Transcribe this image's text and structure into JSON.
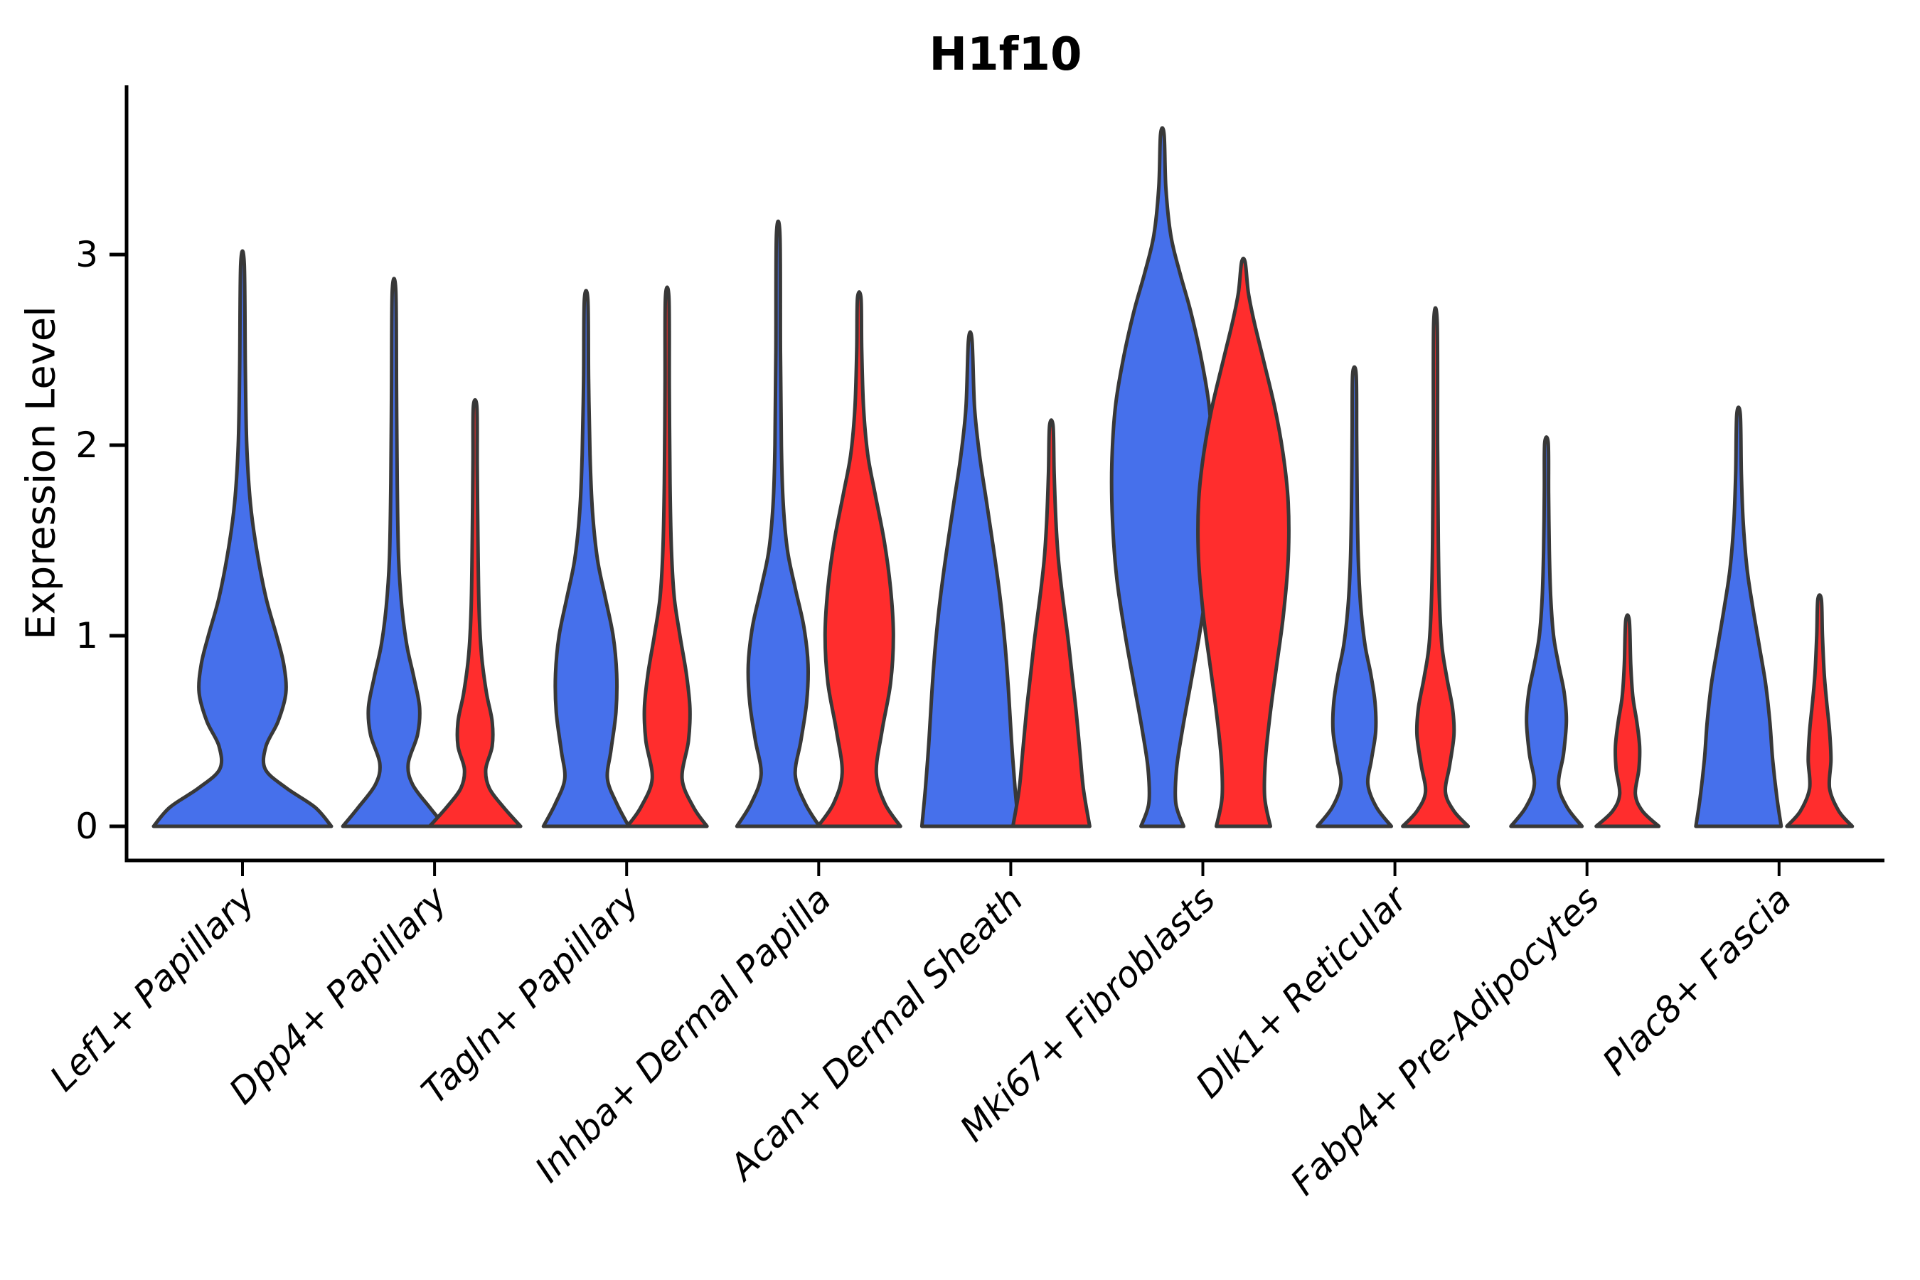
{
  "figure": {
    "background": "#ffffff",
    "axis_color": "#000000"
  },
  "chart_data": {
    "type": "violin",
    "title": "H1f10",
    "ylabel": "Expression Level",
    "xlabel": "",
    "yticks": [
      0,
      1,
      2,
      3
    ],
    "ylim": [
      -0.18,
      3.89
    ],
    "grid": false,
    "legend": "none",
    "group_colors": {
      "group1": "#4670EB",
      "group2": "#FF2D2D"
    },
    "outline_color": "#383838",
    "categories": [
      {
        "label": "Lef1+ Papillary",
        "violins": [
          {
            "group": "group1",
            "max_expression": 2.95,
            "profile": [
              [
                0,
                125
              ],
              [
                0.1,
                102
              ],
              [
                0.2,
                62
              ],
              [
                0.3,
                32
              ],
              [
                0.42,
                33
              ],
              [
                0.55,
                50
              ],
              [
                0.7,
                61
              ],
              [
                0.85,
                58
              ],
              [
                1.0,
                48
              ],
              [
                1.2,
                33
              ],
              [
                1.45,
                20
              ],
              [
                1.7,
                11
              ],
              [
                2.0,
                6
              ],
              [
                2.4,
                4
              ],
              [
                2.95,
                2.5
              ]
            ]
          }
        ]
      },
      {
        "label": "Dpp4+ Papillary",
        "violins": [
          {
            "group": "group1",
            "max_expression": 2.81,
            "profile": [
              [
                0,
                72
              ],
              [
                0.1,
                50
              ],
              [
                0.22,
                26
              ],
              [
                0.33,
                20
              ],
              [
                0.48,
                33
              ],
              [
                0.62,
                36
              ],
              [
                0.78,
                28
              ],
              [
                0.95,
                18
              ],
              [
                1.15,
                11
              ],
              [
                1.4,
                6.5
              ],
              [
                1.8,
                4.5
              ],
              [
                2.3,
                3.5
              ],
              [
                2.81,
                2.5
              ]
            ]
          },
          {
            "group": "group2",
            "max_expression": 2.2,
            "profile": [
              [
                0,
                64
              ],
              [
                0.1,
                40
              ],
              [
                0.2,
                20
              ],
              [
                0.3,
                15
              ],
              [
                0.42,
                24
              ],
              [
                0.55,
                24
              ],
              [
                0.7,
                16
              ],
              [
                0.9,
                9
              ],
              [
                1.15,
                5.5
              ],
              [
                1.5,
                4
              ],
              [
                1.9,
                3
              ],
              [
                2.2,
                2.5
              ]
            ]
          }
        ]
      },
      {
        "label": "Tagln+ Papillary",
        "violins": [
          {
            "group": "group1",
            "max_expression": 2.76,
            "profile": [
              [
                0,
                60
              ],
              [
                0.12,
                43
              ],
              [
                0.25,
                30
              ],
              [
                0.4,
                35
              ],
              [
                0.6,
                42
              ],
              [
                0.8,
                43
              ],
              [
                1.0,
                38
              ],
              [
                1.2,
                27
              ],
              [
                1.4,
                16
              ],
              [
                1.65,
                9
              ],
              [
                1.95,
                5.5
              ],
              [
                2.35,
                3.5
              ],
              [
                2.76,
                2.5
              ]
            ]
          },
          {
            "group": "group2",
            "max_expression": 2.77,
            "profile": [
              [
                0,
                56
              ],
              [
                0.1,
                37
              ],
              [
                0.25,
                21
              ],
              [
                0.45,
                30
              ],
              [
                0.62,
                32
              ],
              [
                0.8,
                27
              ],
              [
                1.0,
                18
              ],
              [
                1.2,
                10
              ],
              [
                1.45,
                6
              ],
              [
                1.8,
                4
              ],
              [
                2.3,
                3
              ],
              [
                2.77,
                2.5
              ]
            ]
          }
        ]
      },
      {
        "label": "Inhba+ Dermal Papilla",
        "violins": [
          {
            "group": "group1",
            "max_expression": 3.1,
            "profile": [
              [
                0,
                58
              ],
              [
                0.12,
                38
              ],
              [
                0.27,
                24
              ],
              [
                0.45,
                32
              ],
              [
                0.65,
                40
              ],
              [
                0.85,
                42
              ],
              [
                1.05,
                36
              ],
              [
                1.25,
                24
              ],
              [
                1.45,
                13
              ],
              [
                1.7,
                7
              ],
              [
                2.0,
                4.5
              ],
              [
                2.5,
                3.2
              ],
              [
                3.1,
                2.5
              ]
            ]
          },
          {
            "group": "group2",
            "max_expression": 2.77,
            "profile": [
              [
                0,
                58
              ],
              [
                0.12,
                36
              ],
              [
                0.28,
                24
              ],
              [
                0.5,
                32
              ],
              [
                0.75,
                44
              ],
              [
                1.0,
                48
              ],
              [
                1.25,
                44
              ],
              [
                1.5,
                35
              ],
              [
                1.75,
                22
              ],
              [
                1.95,
                12
              ],
              [
                2.2,
                6
              ],
              [
                2.5,
                3.5
              ],
              [
                2.77,
                2.5
              ]
            ]
          }
        ]
      },
      {
        "label": "Acan+ Dermal Sheath",
        "violins": [
          {
            "group": "group1",
            "max_expression": 2.55,
            "profile": [
              [
                0,
                68
              ],
              [
                0.2,
                63
              ],
              [
                0.45,
                58
              ],
              [
                0.7,
                54
              ],
              [
                0.95,
                49
              ],
              [
                1.2,
                42
              ],
              [
                1.45,
                33
              ],
              [
                1.7,
                23
              ],
              [
                1.95,
                13
              ],
              [
                2.2,
                6
              ],
              [
                2.55,
                2.5
              ]
            ]
          },
          {
            "group": "group2",
            "max_expression": 2.1,
            "profile": [
              [
                0,
                54
              ],
              [
                0.2,
                45
              ],
              [
                0.4,
                40
              ],
              [
                0.6,
                35
              ],
              [
                0.8,
                29
              ],
              [
                1.0,
                23
              ],
              [
                1.2,
                16
              ],
              [
                1.4,
                10
              ],
              [
                1.6,
                6.5
              ],
              [
                1.85,
                4
              ],
              [
                2.1,
                2.5
              ]
            ]
          }
        ]
      },
      {
        "label": "Mki67+ Fibroblasts",
        "violins": [
          {
            "group": "group1",
            "max_expression": 3.63,
            "profile": [
              [
                0,
                30
              ],
              [
                0.12,
                19
              ],
              [
                0.3,
                20
              ],
              [
                0.5,
                28
              ],
              [
                0.75,
                40
              ],
              [
                1.0,
                52
              ],
              [
                1.3,
                64
              ],
              [
                1.6,
                70
              ],
              [
                1.9,
                71
              ],
              [
                2.2,
                66
              ],
              [
                2.45,
                55
              ],
              [
                2.7,
                40
              ],
              [
                2.9,
                25
              ],
              [
                3.1,
                12
              ],
              [
                3.35,
                5
              ],
              [
                3.63,
                2.5
              ]
            ]
          },
          {
            "group": "group2",
            "max_expression": 2.96,
            "profile": [
              [
                0,
                38
              ],
              [
                0.15,
                30
              ],
              [
                0.35,
                31
              ],
              [
                0.6,
                38
              ],
              [
                0.85,
                47
              ],
              [
                1.1,
                56
              ],
              [
                1.4,
                63
              ],
              [
                1.7,
                63
              ],
              [
                1.95,
                56
              ],
              [
                2.2,
                44
              ],
              [
                2.45,
                28
              ],
              [
                2.65,
                15
              ],
              [
                2.8,
                7
              ],
              [
                2.96,
                2.5
              ]
            ]
          }
        ]
      },
      {
        "label": "Dlk1+ Reticular",
        "violins": [
          {
            "group": "group1",
            "max_expression": 2.37,
            "profile": [
              [
                0,
                52
              ],
              [
                0.1,
                31
              ],
              [
                0.22,
                19
              ],
              [
                0.35,
                24
              ],
              [
                0.5,
                30
              ],
              [
                0.65,
                29
              ],
              [
                0.8,
                23
              ],
              [
                0.95,
                15
              ],
              [
                1.15,
                9
              ],
              [
                1.4,
                5.5
              ],
              [
                1.7,
                4
              ],
              [
                2.05,
                3.2
              ],
              [
                2.37,
                2.5
              ]
            ]
          },
          {
            "group": "group2",
            "max_expression": 2.64,
            "profile": [
              [
                0,
                46
              ],
              [
                0.08,
                26
              ],
              [
                0.18,
                14
              ],
              [
                0.32,
                20
              ],
              [
                0.48,
                26
              ],
              [
                0.62,
                24
              ],
              [
                0.78,
                16
              ],
              [
                0.95,
                9
              ],
              [
                1.2,
                5.5
              ],
              [
                1.5,
                4
              ],
              [
                2.0,
                3
              ],
              [
                2.64,
                2.5
              ]
            ]
          }
        ]
      },
      {
        "label": "Fabp4+ Pre-Adipocytes",
        "violins": [
          {
            "group": "group1",
            "max_expression": 2.01,
            "profile": [
              [
                0,
                50
              ],
              [
                0.1,
                29
              ],
              [
                0.22,
                17
              ],
              [
                0.38,
                24
              ],
              [
                0.55,
                28
              ],
              [
                0.7,
                25
              ],
              [
                0.85,
                17
              ],
              [
                1.0,
                10
              ],
              [
                1.2,
                6
              ],
              [
                1.45,
                4
              ],
              [
                1.75,
                3
              ],
              [
                2.01,
                2.5
              ]
            ]
          },
          {
            "group": "group2",
            "max_expression": 1.08,
            "profile": [
              [
                0,
                44
              ],
              [
                0.08,
                21
              ],
              [
                0.17,
                11
              ],
              [
                0.3,
                16
              ],
              [
                0.42,
                17
              ],
              [
                0.55,
                13
              ],
              [
                0.68,
                7.5
              ],
              [
                0.85,
                4.5
              ],
              [
                1.08,
                2.5
              ]
            ]
          }
        ]
      },
      {
        "label": "Plac8+ Fascia",
        "violins": [
          {
            "group": "group1",
            "max_expression": 2.16,
            "profile": [
              [
                0,
                60
              ],
              [
                0.15,
                54
              ],
              [
                0.35,
                48
              ],
              [
                0.55,
                44
              ],
              [
                0.75,
                38
              ],
              [
                0.95,
                29
              ],
              [
                1.15,
                20
              ],
              [
                1.35,
                12
              ],
              [
                1.6,
                6.5
              ],
              [
                1.85,
                4
              ],
              [
                2.16,
                2.5
              ]
            ]
          },
          {
            "group": "group2",
            "max_expression": 1.19,
            "profile": [
              [
                0,
                46
              ],
              [
                0.08,
                27
              ],
              [
                0.2,
                14
              ],
              [
                0.35,
                16
              ],
              [
                0.5,
                14
              ],
              [
                0.65,
                10
              ],
              [
                0.8,
                6.5
              ],
              [
                1.0,
                4
              ],
              [
                1.19,
                2.5
              ]
            ]
          }
        ]
      }
    ]
  }
}
